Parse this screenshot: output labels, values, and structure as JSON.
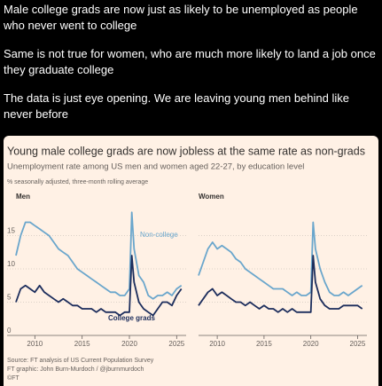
{
  "post": {
    "paragraphs": [
      "Male college grads are now just as likely to be unemployed as people who never went to college",
      "Same is not true for women, who are much more likely to land a job once they graduate college",
      "The data is just eye opening. We are leaving young men behind like never before"
    ]
  },
  "figure": {
    "title": "Young male college grads are now jobless at the same rate as non-grads",
    "subtitle": "Unemployment rate among US men and women aged 22-27, by education level",
    "note": "% seasonally adjusted, three-month rolling average",
    "source": "Source: FT analysis of US Current Population Survey",
    "credit": "FT graphic: John Burn-Murdoch / @jburnmurdoch",
    "logo": "©FT"
  },
  "chart_data": [
    {
      "type": "line",
      "title": "Men",
      "x": [
        2008,
        2008.5,
        2009,
        2009.5,
        2010,
        2010.5,
        2011,
        2011.5,
        2012,
        2012.5,
        2013,
        2013.5,
        2014,
        2014.5,
        2015,
        2015.5,
        2016,
        2016.5,
        2017,
        2017.5,
        2018,
        2018.5,
        2019,
        2019.5,
        2020,
        2020.25,
        2020.5,
        2021,
        2021.5,
        2022,
        2022.5,
        2023,
        2023.5,
        2024,
        2024.5,
        2025,
        2025.5
      ],
      "series": [
        {
          "name": "Non-college",
          "color": "#6aa6cc",
          "values": [
            12,
            15,
            17,
            17,
            16.5,
            16,
            15.5,
            15,
            14,
            13,
            12.5,
            12,
            11,
            10,
            9.5,
            9,
            8.5,
            8,
            7.5,
            7,
            6.5,
            6.5,
            6,
            6,
            7,
            18.5,
            13,
            9,
            8,
            6,
            5.5,
            6,
            6,
            6.5,
            6,
            7,
            7.5
          ]
        },
        {
          "name": "College grads",
          "color": "#1c2d5c",
          "values": [
            5,
            7,
            7.5,
            7,
            6.5,
            7.5,
            6.5,
            6,
            5.5,
            5,
            5.5,
            5,
            4.5,
            4.5,
            4,
            4,
            4,
            3.5,
            4,
            3.5,
            3.5,
            3.5,
            3,
            3.5,
            3.5,
            12,
            8,
            5,
            4,
            3.5,
            3,
            4,
            5,
            5,
            4.5,
            6,
            7
          ]
        }
      ],
      "xlim": [
        2008,
        2026
      ],
      "xticks": [
        2010,
        2015,
        2020,
        2025
      ],
      "ylim": [
        0,
        20
      ],
      "yticks": [
        0,
        5,
        10,
        15
      ],
      "grid": true
    },
    {
      "type": "line",
      "title": "Women",
      "x": [
        2008,
        2008.5,
        2009,
        2009.5,
        2010,
        2010.5,
        2011,
        2011.5,
        2012,
        2012.5,
        2013,
        2013.5,
        2014,
        2014.5,
        2015,
        2015.5,
        2016,
        2016.5,
        2017,
        2017.5,
        2018,
        2018.5,
        2019,
        2019.5,
        2020,
        2020.25,
        2020.5,
        2021,
        2021.5,
        2022,
        2022.5,
        2023,
        2023.5,
        2024,
        2024.5,
        2025,
        2025.5
      ],
      "series": [
        {
          "color": "#6aa6cc",
          "values": [
            9,
            11,
            13,
            14,
            13,
            13.5,
            13,
            12.5,
            11.5,
            11,
            10,
            9.5,
            9,
            8.5,
            8,
            7.5,
            7,
            7,
            7,
            6.5,
            6,
            6.5,
            6,
            6,
            6.5,
            17,
            13,
            10,
            8,
            6.5,
            6,
            6,
            6.5,
            6,
            6.5,
            7,
            7.5
          ]
        },
        {
          "color": "#1c2d5c",
          "values": [
            4.5,
            5.5,
            6.5,
            7,
            6,
            6.5,
            6,
            5.5,
            5,
            5,
            4.5,
            5,
            4.5,
            4,
            4.5,
            4,
            4,
            3.5,
            4,
            3.5,
            4,
            3.5,
            3.5,
            3.5,
            3.5,
            12,
            8,
            5.5,
            4.5,
            4,
            4,
            4,
            4.5,
            4.5,
            4.5,
            4.5,
            4
          ]
        }
      ],
      "xlim": [
        2008,
        2026
      ],
      "xticks": [
        2010,
        2015,
        2020,
        2025
      ],
      "ylim": [
        0,
        20
      ],
      "yticks": [
        0,
        5,
        10,
        15
      ],
      "grid": true
    }
  ]
}
